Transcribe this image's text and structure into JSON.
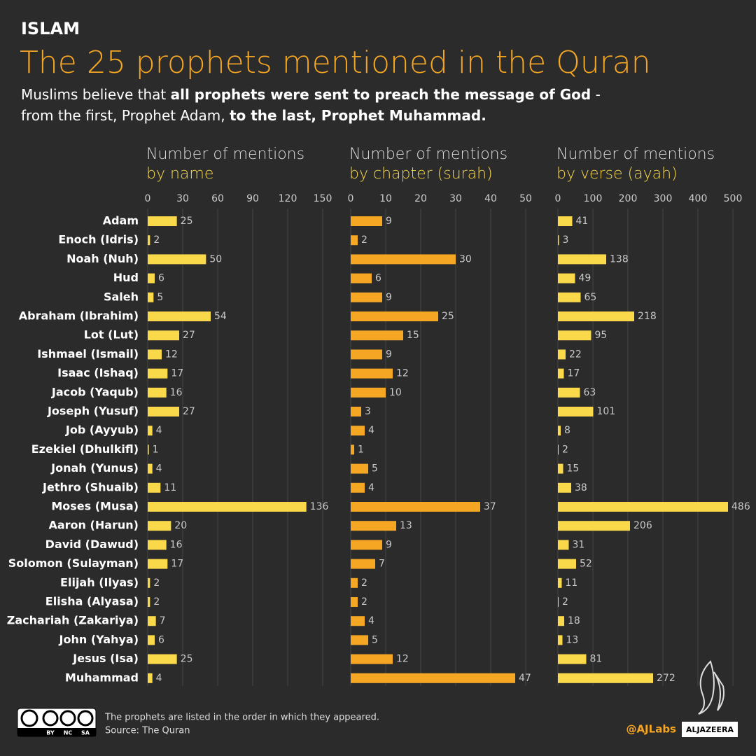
{
  "header": {
    "kicker": "ISLAM",
    "title": "The 25 prophets mentioned in the Quran",
    "subtitle_lines": [
      [
        {
          "text": "Muslims believe that ",
          "bold": false
        },
        {
          "text": "all prophets were sent to preach the message of God",
          "bold": true
        },
        {
          "text": " -",
          "bold": false
        }
      ],
      [
        {
          "text": "from the first, Prophet Adam, ",
          "bold": false
        },
        {
          "text": "to the last, Prophet Muhammad.",
          "bold": true
        }
      ]
    ]
  },
  "chart_data": [
    {
      "type": "bar",
      "title": "Number of mentions",
      "subtitle": "by name",
      "color": "#f9d949",
      "grid": true,
      "categories": [
        "Adam",
        "Enoch (Idris)",
        "Noah (Nuh)",
        "Hud",
        "Saleh",
        "Abraham (Ibrahim)",
        "Lot (Lut)",
        "Ishmael (Ismail)",
        "Isaac (Ishaq)",
        "Jacob (Yaqub)",
        "Joseph (Yusuf)",
        "Job (Ayyub)",
        "Ezekiel (Dhulkifl)",
        "Jonah (Yunus)",
        "Jethro (Shuaib)",
        "Moses (Musa)",
        "Aaron (Harun)",
        "David (Dawud)",
        "Solomon (Sulayman)",
        "Elijah (Ilyas)",
        "Elisha (Alyasa)",
        "Zachariah (Zakariya)",
        "John (Yahya)",
        "Jesus (Isa)",
        "Muhammad"
      ],
      "values": [
        25,
        2,
        50,
        6,
        5,
        54,
        27,
        12,
        17,
        16,
        27,
        4,
        1,
        4,
        11,
        136,
        20,
        16,
        17,
        2,
        2,
        7,
        6,
        25,
        4
      ],
      "xlim": [
        0,
        150
      ],
      "xticks": [
        0,
        30,
        60,
        90,
        120,
        150
      ]
    },
    {
      "type": "bar",
      "title": "Number of mentions",
      "subtitle": "by chapter (surah)",
      "color": "#f5a623",
      "grid": true,
      "values": [
        9,
        2,
        30,
        6,
        9,
        25,
        15,
        9,
        12,
        10,
        3,
        4,
        1,
        5,
        4,
        37,
        13,
        9,
        7,
        2,
        2,
        4,
        5,
        12,
        47
      ],
      "xlim": [
        0,
        50
      ],
      "xticks": [
        0,
        10,
        20,
        30,
        40,
        50
      ]
    },
    {
      "type": "bar",
      "title": "Number of mentions",
      "subtitle": "by verse (ayah)",
      "color": "#f9d949",
      "grid": true,
      "values": [
        41,
        3,
        138,
        49,
        65,
        218,
        95,
        22,
        17,
        63,
        101,
        8,
        2,
        15,
        38,
        486,
        206,
        31,
        52,
        11,
        2,
        18,
        13,
        81,
        272
      ],
      "xlim": [
        0,
        500
      ],
      "xticks": [
        0,
        100,
        200,
        300,
        400,
        500
      ]
    }
  ],
  "footer": {
    "license_labels": [
      "BY",
      "NC",
      "SA"
    ],
    "note": "The prophets are listed in the order in which they appeared.",
    "source": "Source: The Quran",
    "handle": "@AJLabs",
    "brand": "ALJAZEERA"
  }
}
